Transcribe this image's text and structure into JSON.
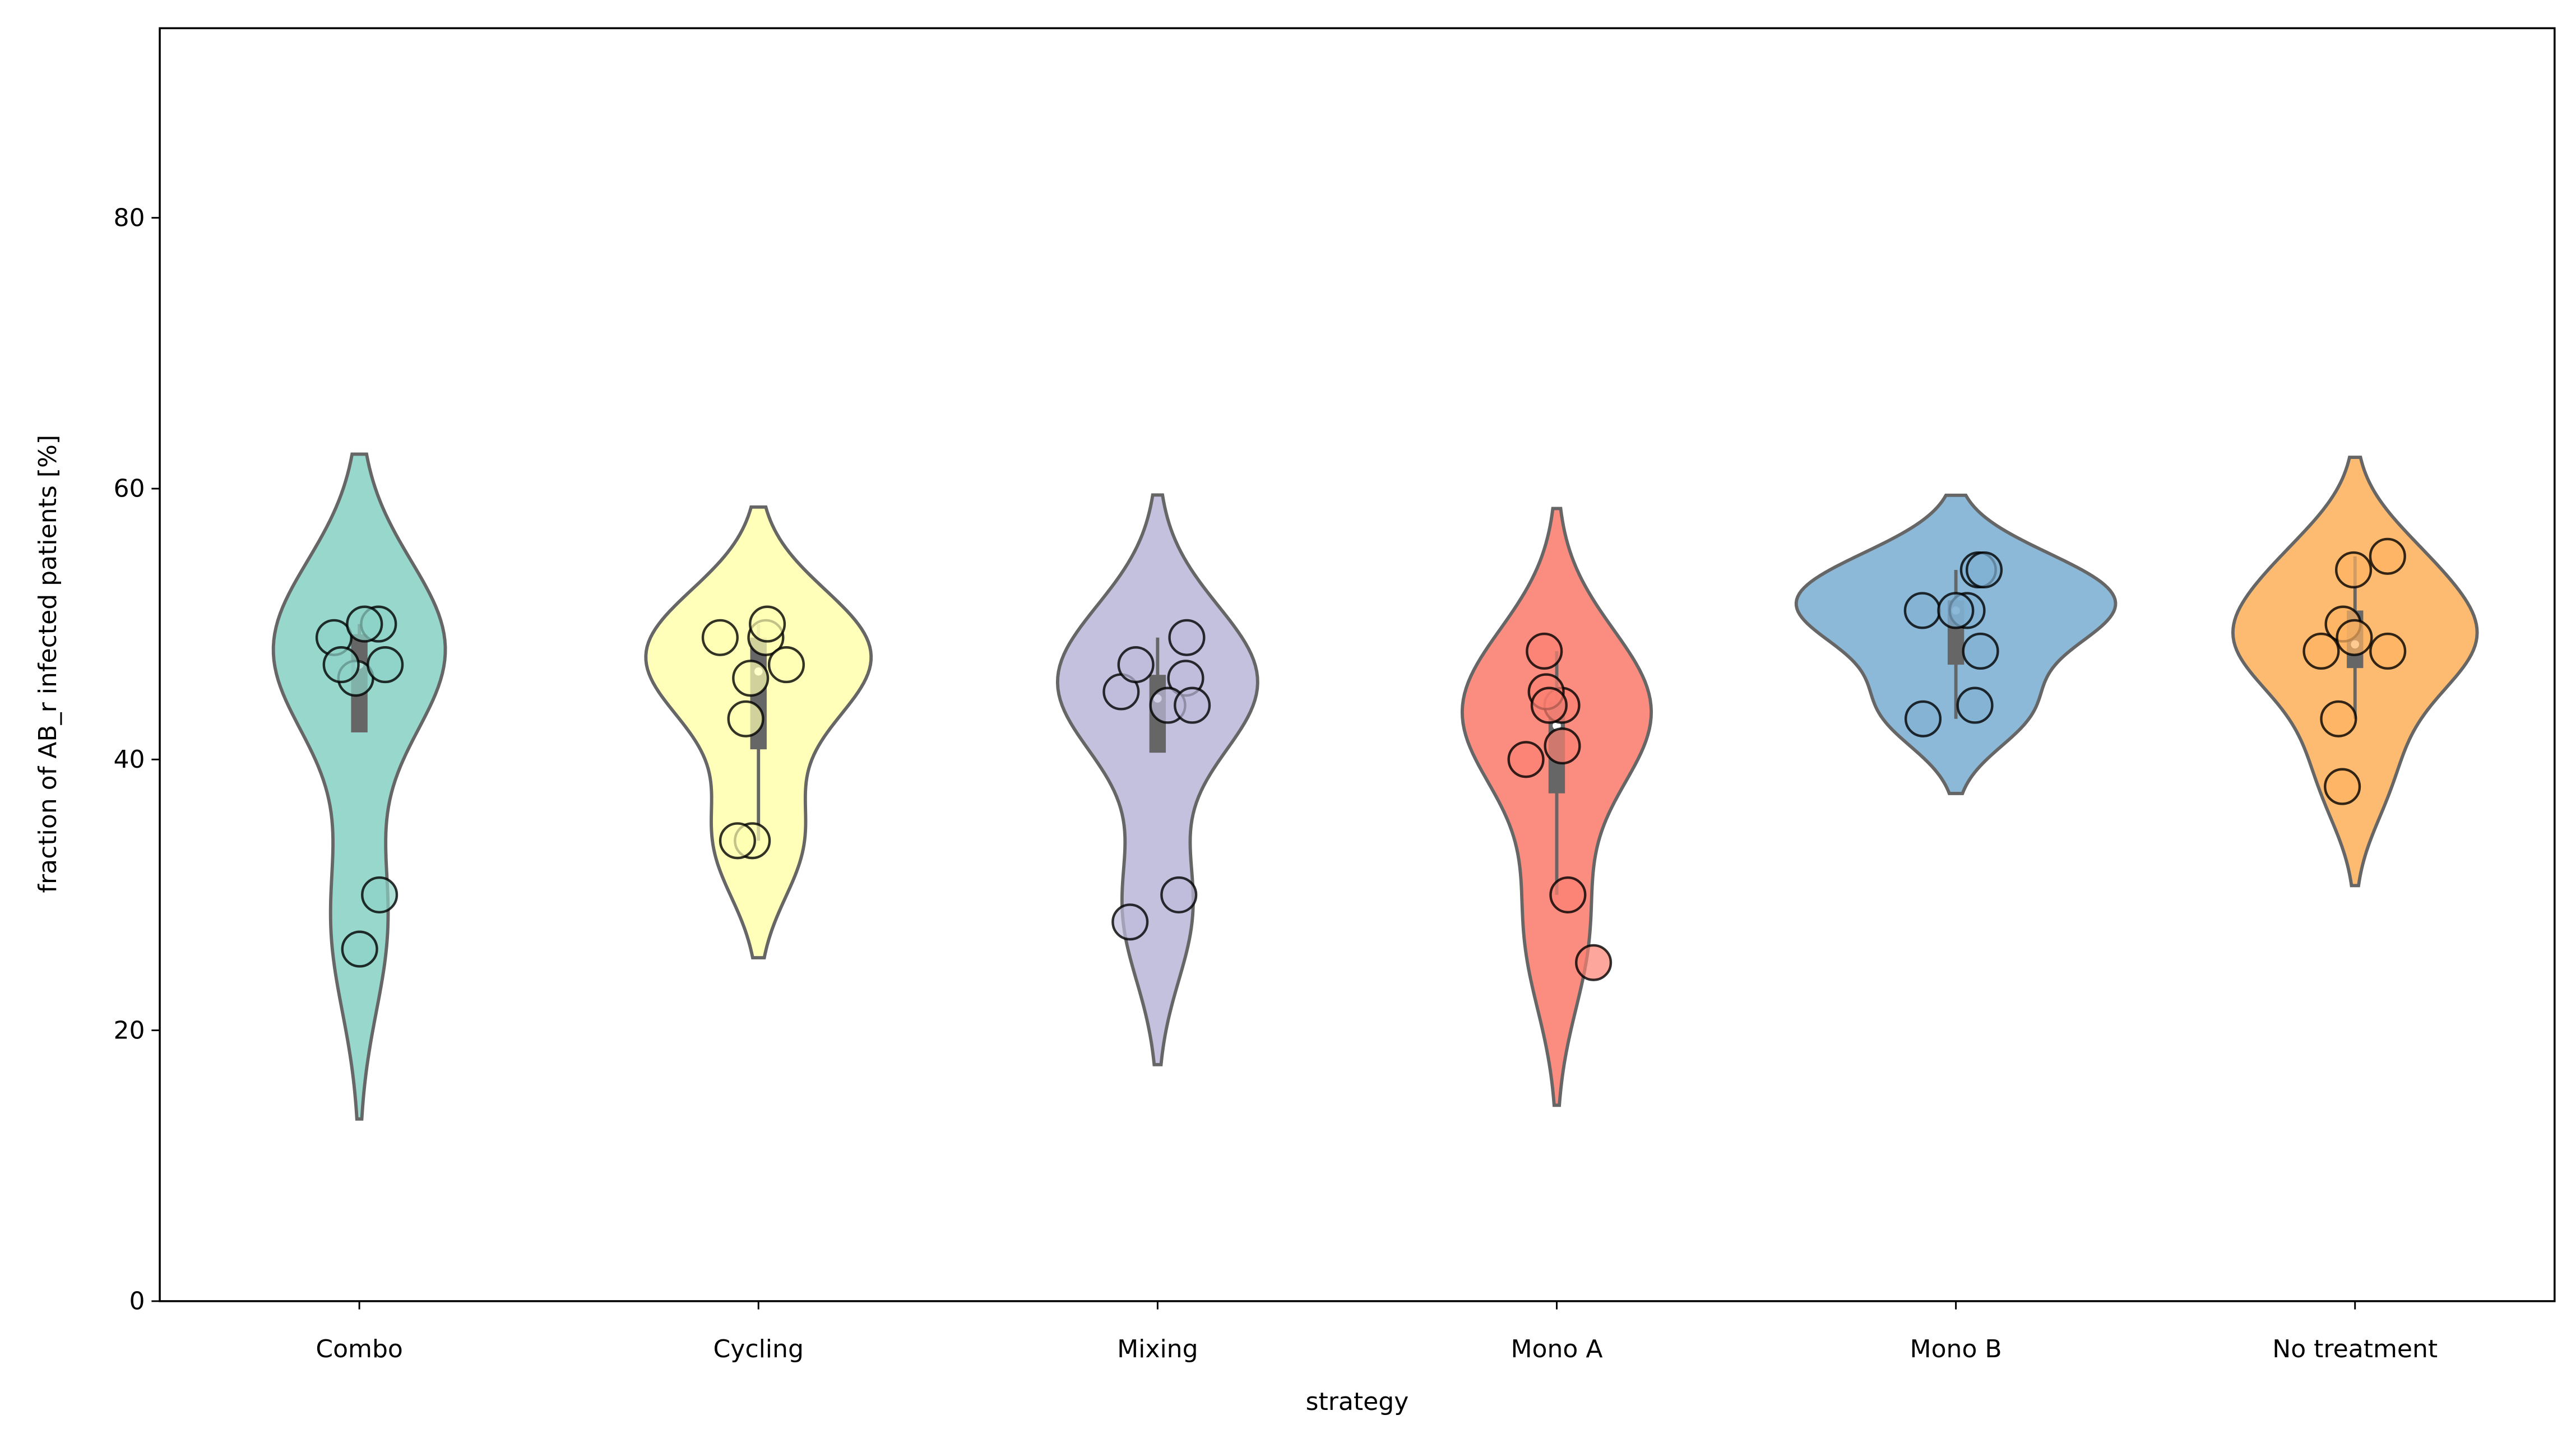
{
  "chart_data": {
    "type": "violin",
    "xlabel": "strategy",
    "ylabel": "fraction of AB_r infected patients [%]",
    "categories": [
      "Combo",
      "Cycling",
      "Mixing",
      "Mono A",
      "Mono B",
      "No treatment"
    ],
    "series": [
      {
        "name": "Combo",
        "color": "#8dd3c7",
        "values": [
          49,
          50,
          50,
          46,
          47,
          47,
          30,
          26
        ]
      },
      {
        "name": "Cycling",
        "color": "#ffffb3",
        "values": [
          49,
          49,
          50,
          46,
          47,
          43,
          34,
          34
        ]
      },
      {
        "name": "Mixing",
        "color": "#bebada",
        "values": [
          49,
          46,
          45,
          44,
          44,
          47,
          30,
          28
        ]
      },
      {
        "name": "Mono A",
        "color": "#fb8072",
        "values": [
          48,
          44,
          45,
          44,
          41,
          40,
          30,
          25
        ]
      },
      {
        "name": "Mono B",
        "color": "#80b1d3",
        "values": [
          54,
          54,
          51,
          51,
          51,
          48,
          44,
          43
        ]
      },
      {
        "name": "No treatment",
        "color": "#fdb462",
        "values": [
          55,
          54,
          50,
          49,
          48,
          48,
          43,
          38
        ]
      }
    ],
    "ylim": [
      0,
      94
    ],
    "yticks": [
      0,
      20,
      40,
      60,
      80
    ]
  }
}
